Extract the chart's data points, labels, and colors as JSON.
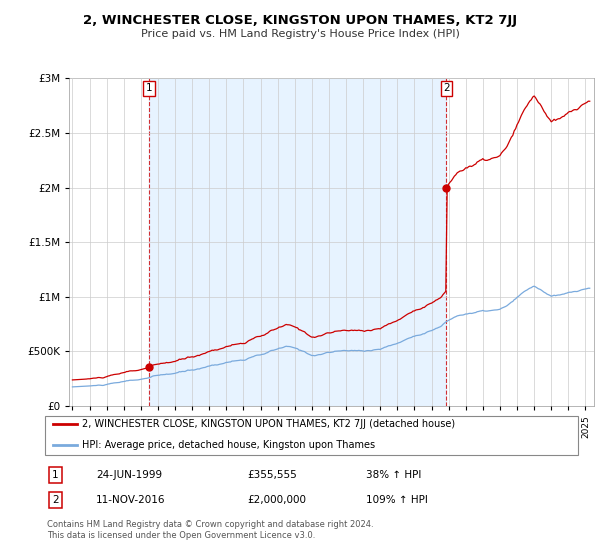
{
  "title": "2, WINCHESTER CLOSE, KINGSTON UPON THAMES, KT2 7JJ",
  "subtitle": "Price paid vs. HM Land Registry's House Price Index (HPI)",
  "legend_line1": "2, WINCHESTER CLOSE, KINGSTON UPON THAMES, KT2 7JJ (detached house)",
  "legend_line2": "HPI: Average price, detached house, Kingston upon Thames",
  "annotation1_date": "24-JUN-1999",
  "annotation1_price": "£355,555",
  "annotation1_hpi": "38% ↑ HPI",
  "annotation2_date": "11-NOV-2016",
  "annotation2_price": "£2,000,000",
  "annotation2_hpi": "109% ↑ HPI",
  "footnote": "Contains HM Land Registry data © Crown copyright and database right 2024.\nThis data is licensed under the Open Government Licence v3.0.",
  "property_color": "#cc0000",
  "hpi_color": "#7aaadd",
  "shade_color": "#ddeeff",
  "sale1_x": 1999.49,
  "sale2_x": 2016.87,
  "sale1_price": 355555,
  "sale2_price": 2000000,
  "ylim": [
    0,
    3000000
  ],
  "xlim_start": 1994.8,
  "xlim_end": 2025.5
}
